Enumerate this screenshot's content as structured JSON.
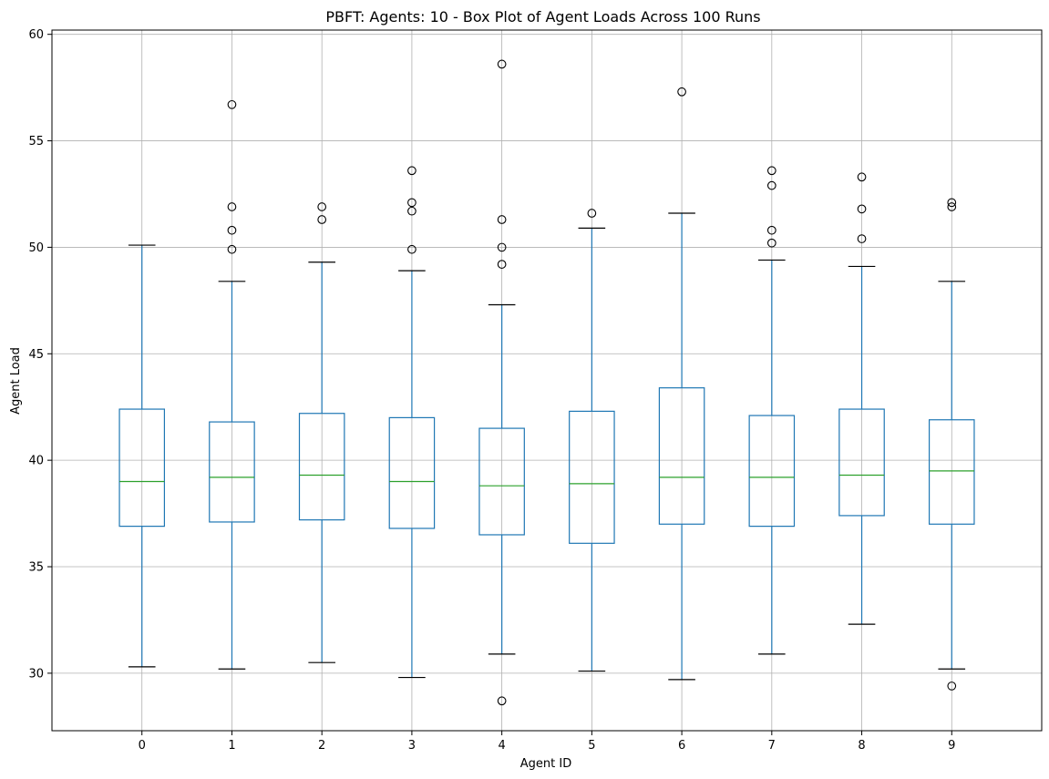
{
  "chart_data": {
    "type": "boxplot",
    "title": "PBFT: Agents: 10 - Box Plot of Agent Loads Across 100 Runs",
    "xlabel": "Agent ID",
    "ylabel": "Agent Load",
    "categories": [
      "0",
      "1",
      "2",
      "3",
      "4",
      "5",
      "6",
      "7",
      "8",
      "9"
    ],
    "ylim": [
      27.3,
      60.2
    ],
    "yticks": [
      30,
      35,
      40,
      45,
      50,
      55,
      60
    ],
    "grid": true,
    "colors": {
      "box": "#1f77b4",
      "median": "#2ca02c",
      "whisker": "#1f77b4",
      "cap": "#000000",
      "flier": "#000000",
      "grid": "#b0b0b0"
    },
    "boxes": [
      {
        "label": "0",
        "whislo": 30.3,
        "q1": 36.9,
        "med": 39.0,
        "q3": 42.4,
        "whishi": 50.1,
        "fliers": []
      },
      {
        "label": "1",
        "whislo": 30.2,
        "q1": 37.1,
        "med": 39.2,
        "q3": 41.8,
        "whishi": 48.4,
        "fliers": [
          49.9,
          50.8,
          51.9,
          56.7
        ]
      },
      {
        "label": "2",
        "whislo": 30.5,
        "q1": 37.2,
        "med": 39.3,
        "q3": 42.2,
        "whishi": 49.3,
        "fliers": [
          51.3,
          51.9
        ]
      },
      {
        "label": "3",
        "whislo": 29.8,
        "q1": 36.8,
        "med": 39.0,
        "q3": 42.0,
        "whishi": 48.9,
        "fliers": [
          49.9,
          51.7,
          52.1,
          53.6
        ]
      },
      {
        "label": "4",
        "whislo": 30.9,
        "q1": 36.5,
        "med": 38.8,
        "q3": 41.5,
        "whishi": 47.3,
        "fliers": [
          28.7,
          49.2,
          50.0,
          51.3,
          58.6
        ]
      },
      {
        "label": "5",
        "whislo": 30.1,
        "q1": 36.1,
        "med": 38.9,
        "q3": 42.3,
        "whishi": 50.9,
        "fliers": [
          51.6
        ]
      },
      {
        "label": "6",
        "whislo": 29.7,
        "q1": 37.0,
        "med": 39.2,
        "q3": 43.4,
        "whishi": 51.6,
        "fliers": [
          57.3
        ]
      },
      {
        "label": "7",
        "whislo": 30.9,
        "q1": 36.9,
        "med": 39.2,
        "q3": 42.1,
        "whishi": 49.4,
        "fliers": [
          50.2,
          50.8,
          52.9,
          53.6
        ]
      },
      {
        "label": "8",
        "whislo": 32.3,
        "q1": 37.4,
        "med": 39.3,
        "q3": 42.4,
        "whishi": 49.1,
        "fliers": [
          50.4,
          51.8,
          53.3
        ]
      },
      {
        "label": "9",
        "whislo": 30.2,
        "q1": 37.0,
        "med": 39.5,
        "q3": 41.9,
        "whishi": 48.4,
        "fliers": [
          29.4,
          51.9,
          52.1
        ]
      }
    ]
  }
}
